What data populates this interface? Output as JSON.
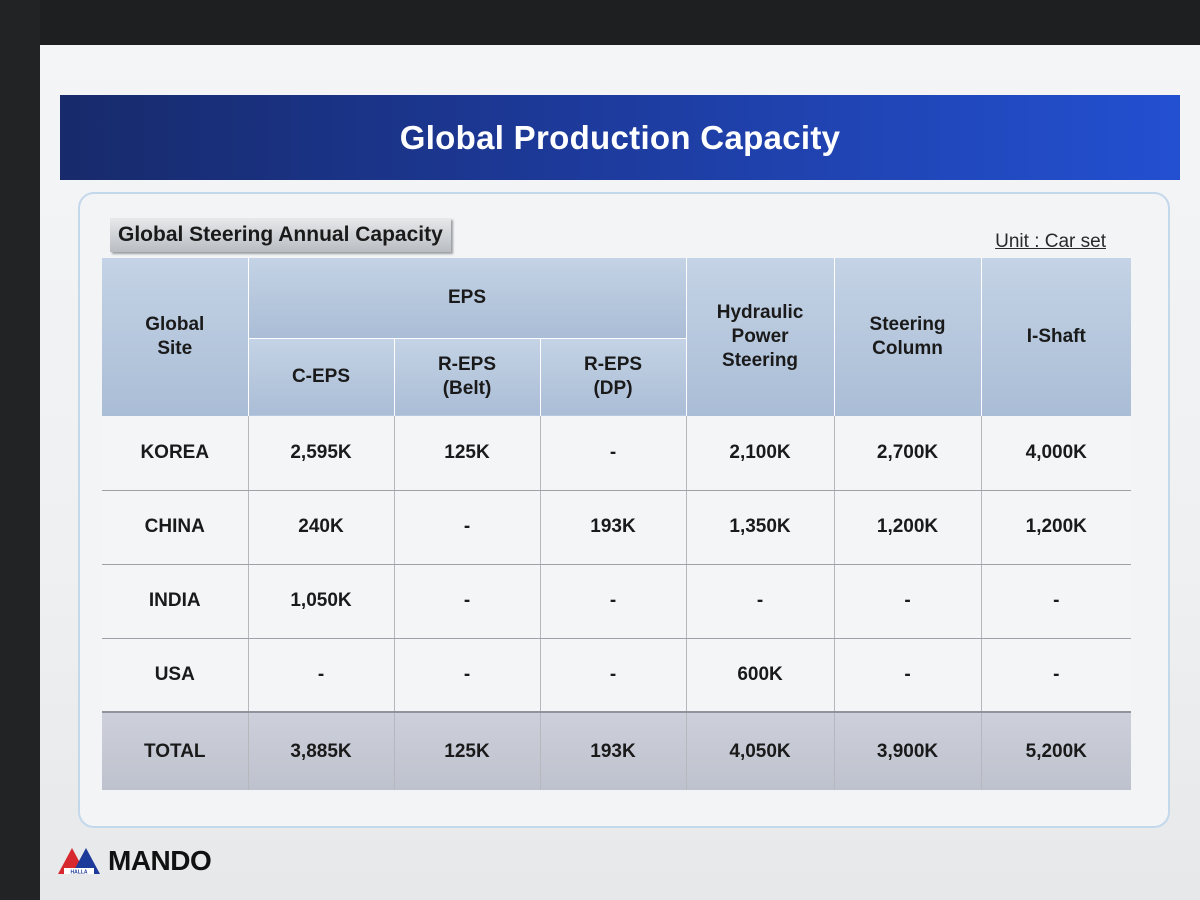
{
  "title": "Global Production Capacity",
  "subtitle": "Global Steering Annual Capacity",
  "unit": "Unit : Car set",
  "table": {
    "header": {
      "site_label": [
        "Global",
        "Site"
      ],
      "eps_group": "EPS",
      "eps_columns": [
        [
          "C-EPS"
        ],
        [
          "R-EPS",
          "(Belt)"
        ],
        [
          "R-EPS",
          "(DP)"
        ]
      ],
      "other_columns": [
        [
          "Hydraulic",
          "Power",
          "Steering"
        ],
        [
          "Steering",
          "Column"
        ],
        [
          "I-Shaft"
        ]
      ]
    },
    "rows": [
      {
        "site": "KOREA",
        "values": [
          "2,595K",
          "125K",
          "-",
          "2,100K",
          "2,700K",
          "4,000K"
        ]
      },
      {
        "site": "CHINA",
        "values": [
          "240K",
          "-",
          "193K",
          "1,350K",
          "1,200K",
          "1,200K"
        ]
      },
      {
        "site": "INDIA",
        "values": [
          "1,050K",
          "-",
          "-",
          "-",
          "-",
          "-"
        ]
      },
      {
        "site": "USA",
        "values": [
          "-",
          "-",
          "-",
          "600K",
          "-",
          "-"
        ]
      }
    ],
    "total": {
      "site": "TOTAL",
      "values": [
        "3,885K",
        "125K",
        "193K",
        "4,050K",
        "3,900K",
        "5,200K"
      ]
    }
  },
  "logo": {
    "text": "MANDO",
    "mark_text": "HALLA"
  },
  "colors": {
    "banner_dark": "#172a6b",
    "banner_light": "#2350d1",
    "header_fill": "#b5c6dc",
    "total_fill": "#c6c9d4",
    "logo_red": "#d7282f"
  }
}
